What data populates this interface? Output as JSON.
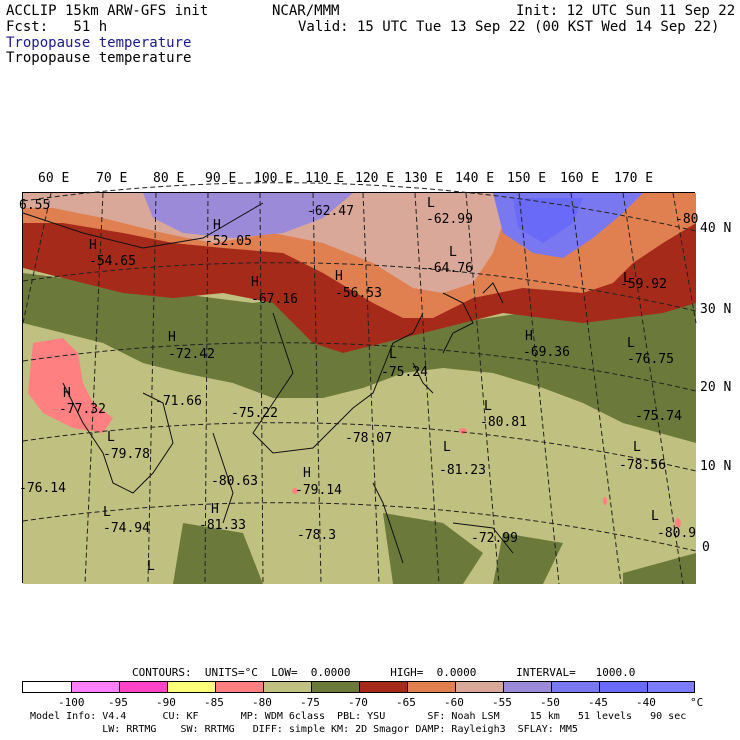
{
  "header": {
    "model": "ACCLIP 15km ARW-GFS init",
    "org": "NCAR/MMM",
    "init": "Init: 12 UTC Sun 11 Sep 22",
    "fcst": "Fcst:   51 h",
    "valid": "Valid: 15 UTC Tue 13 Sep 22 (00 KST Wed 14 Sep 22)",
    "field1": "Tropopause temperature",
    "field2": "Tropopause temperature"
  },
  "axes": {
    "lon_labels": [
      "60 E",
      "70 E",
      "80 E",
      "90 E",
      "100 E",
      "110 E",
      "120 E",
      "130 E",
      "140 E",
      "150 E",
      "160 E",
      "170 E"
    ],
    "lat_labels": [
      "40 N",
      "30 N",
      "20 N",
      "10 N",
      "0"
    ]
  },
  "map": {
    "extremes": [
      {
        "type": "H",
        "value": ""
      },
      {
        "type": "L",
        "value": ""
      },
      {
        "type": "H",
        "value": ""
      },
      {
        "type": "L",
        "value": ""
      },
      {
        "type": "H",
        "value": ""
      },
      {
        "type": "H",
        "value": ""
      },
      {
        "type": "L",
        "value": ""
      },
      {
        "type": "L",
        "value": ""
      },
      {
        "type": "H",
        "value": ""
      },
      {
        "type": "H",
        "value": ""
      },
      {
        "type": "L",
        "value": ""
      },
      {
        "type": "L",
        "value": ""
      },
      {
        "type": "L",
        "value": ""
      },
      {
        "type": "H",
        "value": ""
      },
      {
        "type": "H",
        "value": ""
      },
      {
        "type": "L",
        "value": ""
      },
      {
        "type": "L",
        "value": ""
      },
      {
        "type": "L",
        "value": ""
      },
      {
        "type": "H",
        "value": ""
      },
      {
        "type": "L",
        "value": ""
      },
      {
        "type": "L",
        "value": ""
      }
    ],
    "values": [
      "6.55",
      "-62.47",
      "-62.99",
      "-52.05",
      "-54.65",
      "-64.76",
      "-67.16",
      "-56.53",
      "-59.92",
      "-72.42",
      "-69.36",
      "-76.75",
      "-75.24",
      "-77.32",
      "-71.66",
      "-75.22",
      "-80.81",
      "-75.74",
      "-79.78",
      "-78.07",
      "-81.23",
      "-78.56",
      "-76.14",
      "-80.63",
      "-79.14",
      "-74.94",
      "-81.33",
      "-78.3",
      "-72.99",
      "-80.9",
      "-80"
    ]
  },
  "legend": {
    "contours_line": "CONTOURS:  UNITS=°C  LOW=  0.0000      HIGH=  0.0000      INTERVAL=   1000.0",
    "bins": [
      {
        "color": "#ffffff",
        "label": ""
      },
      {
        "color": "#ff80ff",
        "label": "-100"
      },
      {
        "color": "#ff44c8",
        "label": "-95"
      },
      {
        "color": "#ffff7a",
        "label": "-90"
      },
      {
        "color": "#ff8080",
        "label": "-85"
      },
      {
        "color": "#c0c080",
        "label": "-80"
      },
      {
        "color": "#6b7a3a",
        "label": "-75"
      },
      {
        "color": "#a52a1a",
        "label": "-70"
      },
      {
        "color": "#e08050",
        "label": "-65"
      },
      {
        "color": "#d9a898",
        "label": "-60"
      },
      {
        "color": "#9a8ad8",
        "label": "-55"
      },
      {
        "color": "#7a78f0",
        "label": "-50"
      },
      {
        "color": "#6a6af8",
        "label": "-45"
      },
      {
        "color": "#7c7cf8",
        "label": "-40"
      }
    ],
    "unit": "°C",
    "model_info1": "Model Info: V4.4      CU: KF       MP: WDM 6class  PBL: YSU       SF: Noah LSM     15 km   51 levels   90 sec",
    "model_info2": "            LW: RRTMG    SW: RRTMG   DIFF: simple KM: 2D Smagor DAMP: Rayleigh3  SFLAY: MM5"
  }
}
